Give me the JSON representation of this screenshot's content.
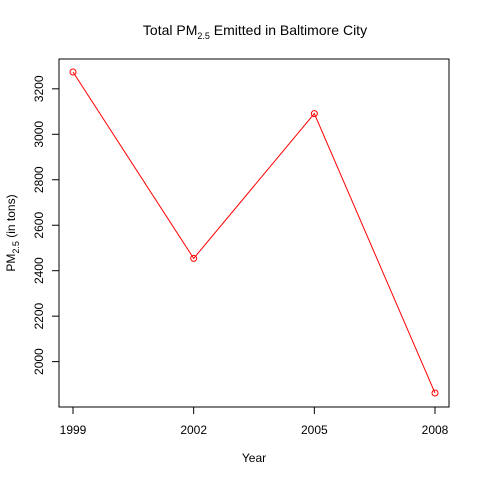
{
  "chart_data": {
    "type": "line",
    "title": {
      "prefix": "Total PM",
      "subscript": "2.5",
      "suffix": " Emitted in Baltimore City"
    },
    "xlabel": "Year",
    "ylabel": {
      "prefix": "PM",
      "subscript": "2.5",
      "suffix": " (in tons)"
    },
    "x": [
      1999,
      2002,
      2005,
      2008
    ],
    "series": [
      {
        "values": [
          3274,
          2454,
          3091,
          1862
        ]
      }
    ],
    "xlim": [
      1999,
      2008
    ],
    "ylim": [
      1862,
      3274
    ],
    "xticks": [
      "1999",
      "2002",
      "2005",
      "2008"
    ],
    "yticks": [
      2000,
      2200,
      2400,
      2600,
      2800,
      3000,
      3200
    ],
    "series_color": "#ff0000",
    "marker": "open-circle",
    "grid": false,
    "legend": "none"
  }
}
